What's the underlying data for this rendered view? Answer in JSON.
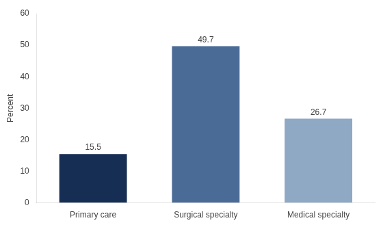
{
  "chart_data": {
    "type": "bar",
    "categories": [
      "Primary care",
      "Surgical specialty",
      "Medical specialty"
    ],
    "values": [
      15.5,
      49.7,
      26.7
    ],
    "colors": [
      "#162d54",
      "#4a6b96",
      "#8fa8c4"
    ],
    "ylabel": "Percent",
    "ylim": [
      0,
      60
    ],
    "yticks": [
      0,
      10,
      20,
      30,
      40,
      50,
      60
    ],
    "grid": false,
    "data_labels": true
  }
}
